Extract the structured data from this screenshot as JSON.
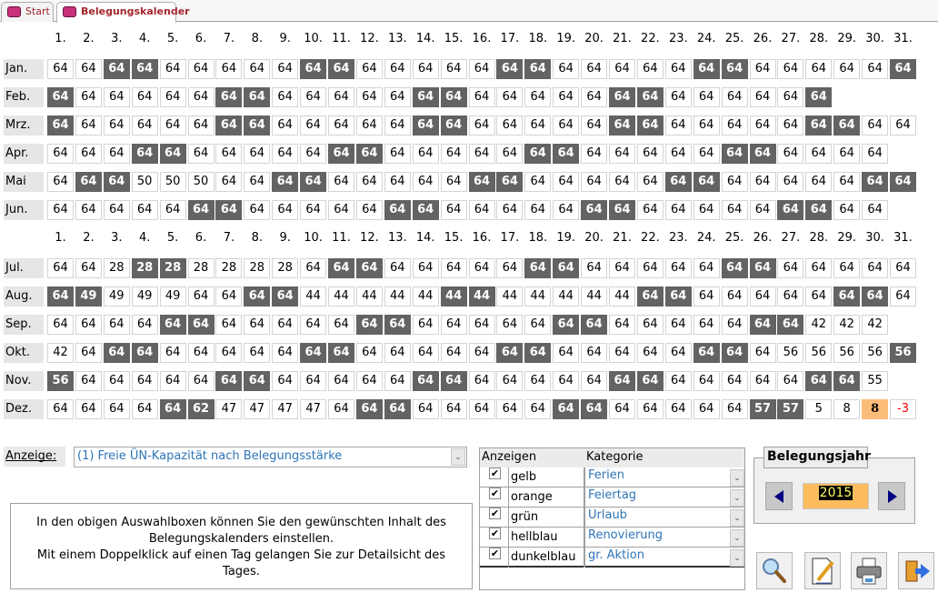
{
  "tabs": [
    {
      "label": "Start",
      "active": false
    },
    {
      "label": "Belegungskalender",
      "active": true
    }
  ],
  "day_headers": [
    "1.",
    "2.",
    "3.",
    "4.",
    "5.",
    "6.",
    "7.",
    "8.",
    "9.",
    "10.",
    "11.",
    "12.",
    "13.",
    "14.",
    "15.",
    "16.",
    "17.",
    "18.",
    "19.",
    "20.",
    "21.",
    "22.",
    "23.",
    "24.",
    "25.",
    "26.",
    "27.",
    "28.",
    "29.",
    "30.",
    "31."
  ],
  "months": [
    {
      "label": "Jan.",
      "values": [
        64,
        64,
        64,
        64,
        64,
        64,
        64,
        64,
        64,
        64,
        64,
        64,
        64,
        64,
        64,
        64,
        64,
        64,
        64,
        64,
        64,
        64,
        64,
        64,
        64,
        64,
        64,
        64,
        64,
        64,
        64
      ],
      "weekend": [
        3,
        4,
        10,
        11,
        17,
        18,
        24,
        25,
        31
      ]
    },
    {
      "label": "Feb.",
      "values": [
        64,
        64,
        64,
        64,
        64,
        64,
        64,
        64,
        64,
        64,
        64,
        64,
        64,
        64,
        64,
        64,
        64,
        64,
        64,
        64,
        64,
        64,
        64,
        64,
        64,
        64,
        64,
        64
      ],
      "weekend": [
        1,
        7,
        8,
        14,
        15,
        21,
        22,
        28
      ]
    },
    {
      "label": "Mrz.",
      "values": [
        64,
        64,
        64,
        64,
        64,
        64,
        64,
        64,
        64,
        64,
        64,
        64,
        64,
        64,
        64,
        64,
        64,
        64,
        64,
        64,
        64,
        64,
        64,
        64,
        64,
        64,
        64,
        64,
        64,
        64,
        64
      ],
      "weekend": [
        1,
        7,
        8,
        14,
        15,
        21,
        22,
        28,
        29
      ]
    },
    {
      "label": "Apr.",
      "values": [
        64,
        64,
        64,
        64,
        64,
        64,
        64,
        64,
        64,
        64,
        64,
        64,
        64,
        64,
        64,
        64,
        64,
        64,
        64,
        64,
        64,
        64,
        64,
        64,
        64,
        64,
        64,
        64,
        64,
        64
      ],
      "weekend": [
        4,
        5,
        11,
        12,
        18,
        19,
        25,
        26
      ]
    },
    {
      "label": "Mai",
      "values": [
        64,
        64,
        64,
        50,
        50,
        50,
        64,
        64,
        64,
        64,
        64,
        64,
        64,
        64,
        64,
        64,
        64,
        64,
        64,
        64,
        64,
        64,
        64,
        64,
        64,
        64,
        64,
        64,
        64,
        64,
        64
      ],
      "weekend": [
        2,
        3,
        9,
        10,
        16,
        17,
        23,
        24,
        30,
        31
      ]
    },
    {
      "label": "Jun.",
      "values": [
        64,
        64,
        64,
        64,
        64,
        64,
        64,
        64,
        64,
        64,
        64,
        64,
        64,
        64,
        64,
        64,
        64,
        64,
        64,
        64,
        64,
        64,
        64,
        64,
        64,
        64,
        64,
        64,
        64,
        64
      ],
      "weekend": [
        6,
        7,
        13,
        14,
        20,
        21,
        27,
        28
      ]
    },
    {
      "label": "Jul.",
      "values": [
        64,
        64,
        28,
        28,
        28,
        28,
        28,
        28,
        28,
        64,
        64,
        64,
        64,
        64,
        64,
        64,
        64,
        64,
        64,
        64,
        64,
        64,
        64,
        64,
        64,
        64,
        64,
        64,
        64,
        64,
        64
      ],
      "weekend": [
        4,
        5,
        11,
        12,
        18,
        19,
        25,
        26
      ]
    },
    {
      "label": "Aug.",
      "values": [
        64,
        49,
        49,
        49,
        49,
        64,
        64,
        64,
        64,
        44,
        44,
        44,
        44,
        44,
        44,
        44,
        44,
        44,
        44,
        44,
        44,
        64,
        64,
        64,
        64,
        64,
        64,
        64,
        64,
        64,
        64
      ],
      "weekend": [
        1,
        2,
        8,
        9,
        15,
        16,
        22,
        23,
        29,
        30
      ]
    },
    {
      "label": "Sep.",
      "values": [
        64,
        64,
        64,
        64,
        64,
        64,
        64,
        64,
        64,
        64,
        64,
        64,
        64,
        64,
        64,
        64,
        64,
        64,
        64,
        64,
        64,
        64,
        64,
        64,
        64,
        64,
        64,
        42,
        42,
        42
      ],
      "weekend": [
        5,
        6,
        12,
        13,
        19,
        20,
        26,
        27
      ]
    },
    {
      "label": "Okt.",
      "values": [
        42,
        64,
        64,
        64,
        64,
        64,
        64,
        64,
        64,
        64,
        64,
        64,
        64,
        64,
        64,
        64,
        64,
        64,
        64,
        64,
        64,
        64,
        64,
        64,
        64,
        64,
        56,
        56,
        56,
        56,
        56
      ],
      "weekend": [
        3,
        4,
        10,
        11,
        17,
        18,
        24,
        25,
        31
      ]
    },
    {
      "label": "Nov.",
      "values": [
        56,
        64,
        64,
        64,
        64,
        64,
        64,
        64,
        64,
        64,
        64,
        64,
        64,
        64,
        64,
        64,
        64,
        64,
        64,
        64,
        64,
        64,
        64,
        64,
        64,
        64,
        64,
        64,
        64,
        55
      ],
      "weekend": [
        1,
        7,
        8,
        14,
        15,
        21,
        22,
        28,
        29
      ]
    },
    {
      "label": "Dez.",
      "values": [
        64,
        64,
        64,
        64,
        64,
        62,
        47,
        47,
        47,
        47,
        64,
        64,
        64,
        64,
        64,
        64,
        64,
        64,
        64,
        64,
        64,
        64,
        64,
        64,
        64,
        57,
        57,
        5,
        8,
        8,
        -3
      ],
      "weekend": [
        5,
        6,
        12,
        13,
        19,
        20,
        26,
        27
      ],
      "today": 30
    }
  ],
  "colors": {
    "weekend": "#636363",
    "today": "#fdbd7a",
    "negative": "#ff0000",
    "link_text": "#2e75b6"
  },
  "anzeige": {
    "label": "Anzeige:",
    "value": "(1) Freie ÜN-Kapazität nach Belegungsstärke"
  },
  "info_text": [
    "In den obigen Auswahlboxen können Sie den gewünschten Inhalt des",
    "Belegungskalenders einstellen.",
    "Mit einem Doppelklick auf einen Tag gelangen Sie zur Detailsicht des",
    "Tages."
  ],
  "categories": {
    "header_show": "Anzeigen",
    "header_category": "Kategorie",
    "rows": [
      {
        "color": "gelb",
        "category": "Ferien",
        "checked": true
      },
      {
        "color": "orange",
        "category": "Feiertag",
        "checked": true
      },
      {
        "color": "grün",
        "category": "Urlaub",
        "checked": true
      },
      {
        "color": "hellblau",
        "category": "Renovierung",
        "checked": true
      },
      {
        "color": "dunkelblau",
        "category": "gr. Aktion",
        "checked": true
      }
    ]
  },
  "year": {
    "title": "Belegungsjahr",
    "value": "2015"
  },
  "toolbar": [
    {
      "icon": "search-icon"
    },
    {
      "icon": "edit-icon"
    },
    {
      "icon": "print-icon"
    },
    {
      "icon": "exit-icon"
    }
  ]
}
